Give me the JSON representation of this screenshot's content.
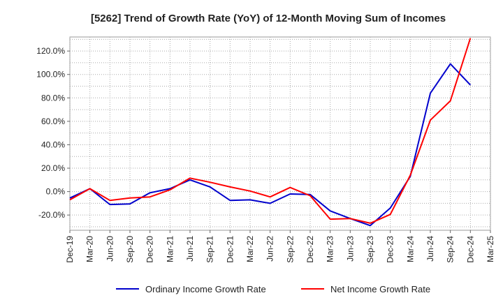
{
  "chart_data": {
    "type": "line",
    "title": "[5262]  Trend of Growth Rate (YoY) of 12-Month Moving Sum of Incomes",
    "xlabel": "",
    "ylabel": "",
    "ylim": [
      -33,
      132
    ],
    "y_ticks": [
      "-20.0%",
      "0.0%",
      "20.0%",
      "40.0%",
      "60.0%",
      "80.0%",
      "100.0%",
      "120.0%"
    ],
    "x_tick_labels": [
      "Dec-19",
      "Mar-20",
      "Jun-20",
      "Sep-20",
      "Dec-20",
      "Mar-21",
      "Jun-21",
      "Sep-21",
      "Dec-21",
      "Mar-22",
      "Jun-22",
      "Sep-22",
      "Dec-22",
      "Mar-23",
      "Jun-23",
      "Sep-23",
      "Dec-23",
      "Mar-24",
      "Jun-24",
      "Sep-24",
      "Dec-24",
      "Mar-25"
    ],
    "grid": true,
    "legend_position": "bottom",
    "series": [
      {
        "name": "Ordinary Income Growth Rate",
        "color": "#0000cc",
        "values": [
          -5.5,
          2.5,
          -11,
          -10.5,
          -1,
          2.5,
          10,
          4,
          -7.5,
          -7,
          -10,
          -2,
          -2.5,
          -16.5,
          -23,
          -29,
          -14,
          13,
          84,
          109,
          91
        ]
      },
      {
        "name": "Net Income Growth Rate",
        "color": "#ff0000",
        "values": [
          -7,
          2.5,
          -7.5,
          -5.5,
          -4.5,
          1.5,
          11.5,
          8,
          4,
          0.5,
          -4.5,
          3.5,
          -3.5,
          -23.5,
          -23,
          -27,
          -19.5,
          14,
          61,
          77.5,
          131
        ]
      }
    ]
  }
}
